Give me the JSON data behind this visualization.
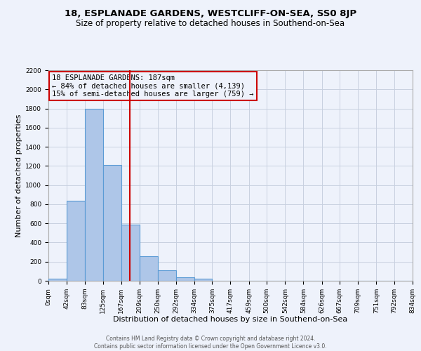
{
  "title_line1": "18, ESPLANADE GARDENS, WESTCLIFF-ON-SEA, SS0 8JP",
  "title_line2": "Size of property relative to detached houses in Southend-on-Sea",
  "xlabel": "Distribution of detached houses by size in Southend-on-Sea",
  "ylabel": "Number of detached properties",
  "footer_line1": "Contains HM Land Registry data © Crown copyright and database right 2024.",
  "footer_line2": "Contains public sector information licensed under the Open Government Licence v3.0.",
  "annotation_line1": "18 ESPLANADE GARDENS: 187sqm",
  "annotation_line2": "← 84% of detached houses are smaller (4,139)",
  "annotation_line3": "15% of semi-detached houses are larger (759) →",
  "bar_edges": [
    0,
    42,
    83,
    125,
    167,
    209,
    250,
    292,
    334,
    375,
    417,
    459,
    500,
    542,
    584,
    626,
    667,
    709,
    751,
    792,
    834
  ],
  "bar_heights": [
    25,
    838,
    1800,
    1210,
    590,
    255,
    110,
    40,
    25,
    0,
    0,
    0,
    0,
    0,
    0,
    0,
    0,
    0,
    0,
    0
  ],
  "property_size": 187,
  "bar_color": "#aec6e8",
  "bar_edge_color": "#5b9bd5",
  "red_line_color": "#cc0000",
  "annotation_box_edge": "#cc0000",
  "grid_color": "#c8d0e0",
  "background_color": "#eef2fb",
  "ylim": [
    0,
    2200
  ],
  "yticks": [
    0,
    200,
    400,
    600,
    800,
    1000,
    1200,
    1400,
    1600,
    1800,
    2000,
    2200
  ],
  "xtick_labels": [
    "0sqm",
    "42sqm",
    "83sqm",
    "125sqm",
    "167sqm",
    "209sqm",
    "250sqm",
    "292sqm",
    "334sqm",
    "375sqm",
    "417sqm",
    "459sqm",
    "500sqm",
    "542sqm",
    "584sqm",
    "626sqm",
    "667sqm",
    "709sqm",
    "751sqm",
    "792sqm",
    "834sqm"
  ],
  "title1_fontsize": 9.5,
  "title2_fontsize": 8.5,
  "xlabel_fontsize": 8.0,
  "ylabel_fontsize": 8.0,
  "tick_fontsize": 6.5,
  "annotation_fontsize": 7.5,
  "footer_fontsize": 5.5
}
